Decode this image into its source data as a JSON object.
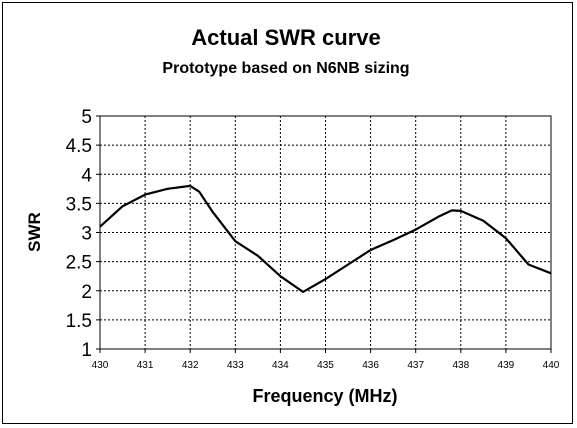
{
  "chart_data": {
    "type": "line",
    "title": "Actual SWR curve",
    "subtitle": "Prototype based on N6NB sizing",
    "xlabel": "Frequency (MHz)",
    "ylabel": "SWR",
    "xlim": [
      430,
      440
    ],
    "ylim": [
      1,
      5
    ],
    "x_ticks": [
      "430",
      "431",
      "432",
      "433",
      "434",
      "435",
      "436",
      "437",
      "438",
      "439",
      "440"
    ],
    "y_ticks": [
      "1",
      "1.5",
      "2",
      "2.5",
      "3",
      "3.5",
      "4",
      "4.5",
      "5"
    ],
    "grid": true,
    "legend": "none",
    "line_color": "#000000",
    "series": [
      {
        "x": [
          430,
          430.5,
          431,
          431.5,
          432,
          432.2,
          432.5,
          433,
          433.5,
          434,
          434.5,
          435,
          435.5,
          436,
          436.5,
          437,
          437.5,
          437.8,
          438,
          438.5,
          439,
          439.5,
          440
        ],
        "y": [
          3.1,
          3.45,
          3.65,
          3.75,
          3.8,
          3.7,
          3.35,
          2.85,
          2.6,
          2.25,
          1.98,
          2.2,
          2.45,
          2.7,
          2.87,
          3.05,
          3.27,
          3.38,
          3.37,
          3.2,
          2.9,
          2.45,
          2.3
        ]
      }
    ]
  }
}
